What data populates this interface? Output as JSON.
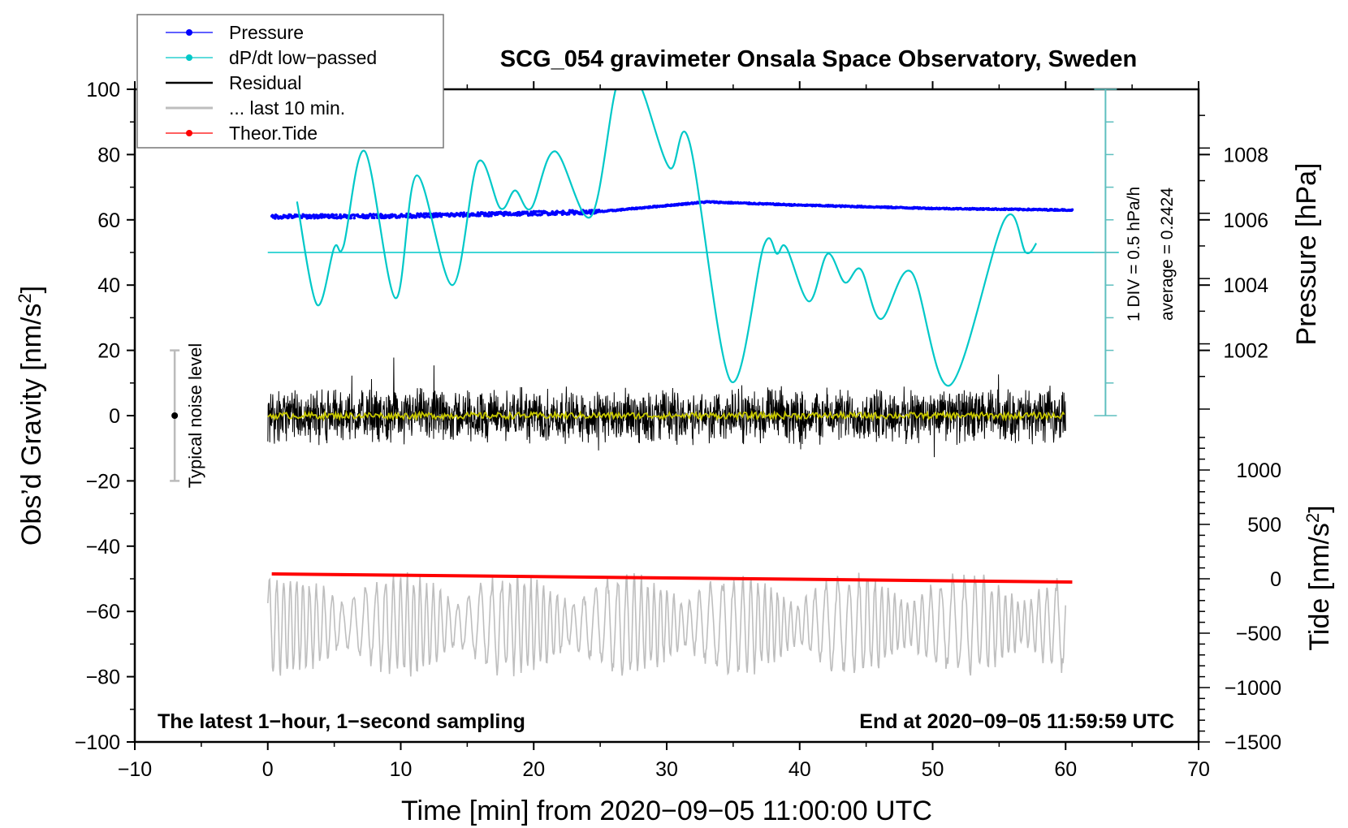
{
  "chart_data": {
    "type": "line",
    "title": "SCG_054 gravimeter Onsala Space Observatory, Sweden",
    "xlabel": "Time [min] from 2020−09−05 11:00:00 UTC",
    "ylabel_left": "Obs’d Gravity [nm/s",
    "ylabel_left_sup": "2",
    "ylabel_left_end": "]",
    "ylabel_right_pressure": "Pressure [hPa]",
    "ylabel_right_tide": "Tide [nm/s",
    "ylabel_right_tide_sup": "2",
    "ylabel_right_tide_end": "]",
    "xlim": [
      -10,
      70
    ],
    "ylim": [
      -100,
      100
    ],
    "x_ticks": [
      "−10",
      "0",
      "10",
      "20",
      "30",
      "40",
      "50",
      "60",
      "70"
    ],
    "y_ticks": [
      "100",
      "80",
      "60",
      "40",
      "20",
      "0",
      "−20",
      "−40",
      "−60",
      "−80",
      "−100"
    ],
    "pressure_ticks": [
      "1008",
      "1006",
      "1004",
      "1002"
    ],
    "tide_ticks": [
      "1000",
      "500",
      "0",
      "−500",
      "−1000",
      "−1500"
    ],
    "legend": {
      "placement": "top-left",
      "entries": [
        {
          "label": "Pressure",
          "color": "#0000ff",
          "marker": true
        },
        {
          "label": "dP/dt low−passed",
          "color": "#00c8c8",
          "marker": true
        },
        {
          "label": "Residual",
          "color": "#000000",
          "marker": false
        },
        {
          "label": "... last 10 min.",
          "color": "#bebebe",
          "marker": false
        },
        {
          "label": "Theor.Tide",
          "color": "#ff0000",
          "marker": true
        }
      ]
    },
    "annotations": {
      "bottom_left": "The latest 1−hour, 1−second sampling",
      "bottom_right": "End at 2020−09−05 11:59:59 UTC",
      "noise_label": "Typical noise level",
      "div_label": "1 DIV = 0.5 hPa/h",
      "average_label": "average = 0.2424"
    },
    "series": {
      "dpdt_lowpassed": {
        "color": "#00c8c8",
        "points": [
          [
            2.2,
            65.6
          ],
          [
            3.7,
            34
          ],
          [
            5.0,
            51.5
          ],
          [
            5.7,
            52
          ],
          [
            7.3,
            81
          ],
          [
            9.6,
            36
          ],
          [
            11.2,
            73.6
          ],
          [
            13.9,
            40
          ],
          [
            15.8,
            77.6
          ],
          [
            17.5,
            63.5
          ],
          [
            18.6,
            69
          ],
          [
            19.8,
            63.5
          ],
          [
            21.6,
            81
          ],
          [
            24.3,
            61
          ],
          [
            26.3,
            102
          ],
          [
            27.9,
            102
          ],
          [
            30.2,
            76
          ],
          [
            31.7,
            84
          ],
          [
            34.8,
            10.7
          ],
          [
            37.3,
            52
          ],
          [
            38.3,
            49.6
          ],
          [
            39.0,
            51.5
          ],
          [
            40.7,
            35
          ],
          [
            42.1,
            49.6
          ],
          [
            43.4,
            40.8
          ],
          [
            44.6,
            44.8
          ],
          [
            46.1,
            29.6
          ],
          [
            48.4,
            44
          ],
          [
            51.3,
            9.3
          ],
          [
            55.4,
            60
          ],
          [
            57.0,
            50
          ],
          [
            57.8,
            52.8
          ]
        ],
        "average_level": 50
      },
      "pressure_hPa": {
        "color": "#0000ff",
        "points": [
          [
            0.3,
            1006.1
          ],
          [
            10,
            1006.12
          ],
          [
            20,
            1006.2
          ],
          [
            25,
            1006.25
          ],
          [
            33,
            1006.55
          ],
          [
            40,
            1006.45
          ],
          [
            50,
            1006.35
          ],
          [
            60.5,
            1006.3
          ]
        ]
      },
      "residual": {
        "color": "#000000",
        "t_range": [
          0,
          60
        ],
        "typical_amplitude": 8,
        "max_amplitude": 18
      },
      "residual_smoothed": {
        "color": "#c8c800",
        "level": 0
      },
      "last_10_min": {
        "color": "#bebebe",
        "t_range": [
          0,
          60
        ],
        "center": -64,
        "amplitude": 10
      },
      "theor_tide_nm_s2": {
        "color": "#ff0000",
        "points": [
          [
            0.3,
            45
          ],
          [
            60.5,
            -30
          ]
        ]
      }
    },
    "noise_bar": {
      "x": -7,
      "range": [
        -20,
        20
      ]
    }
  }
}
